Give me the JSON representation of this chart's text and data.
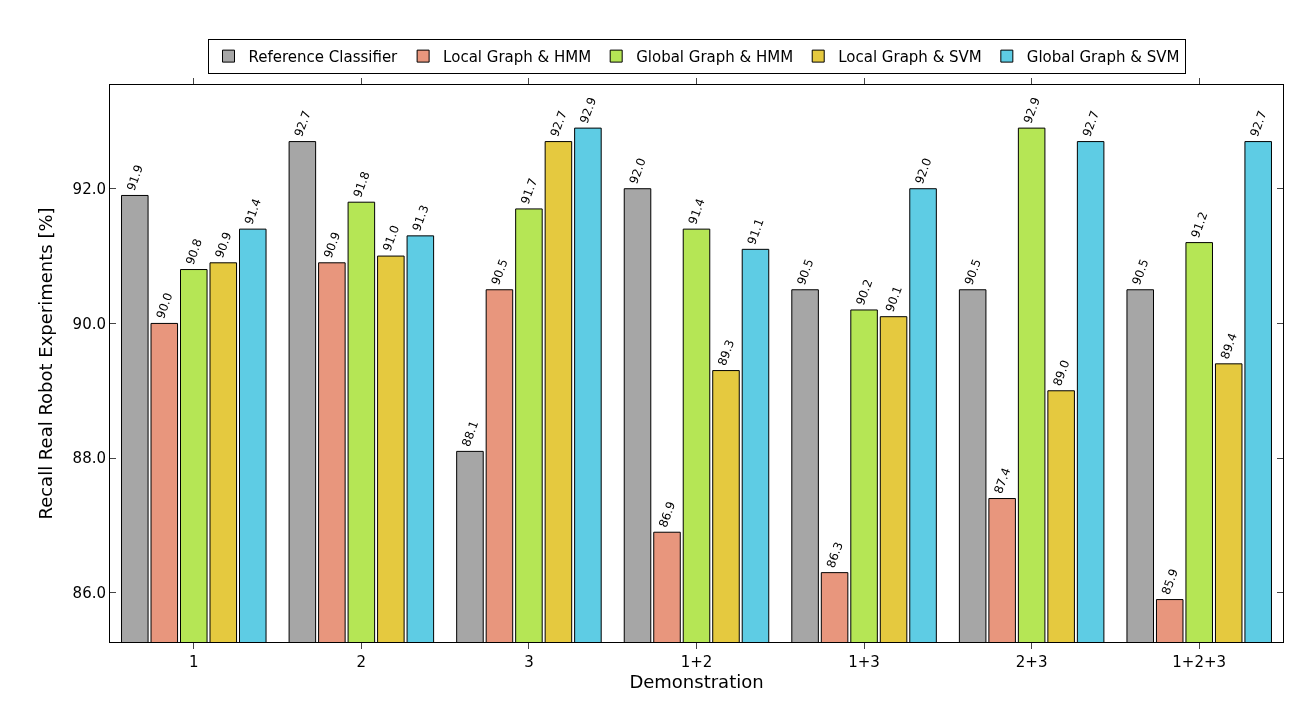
{
  "chart_data": {
    "type": "bar",
    "xlabel": "Demonstration",
    "ylabel": "Recall Real Robot Experiments [%]",
    "categories": [
      "1",
      "2",
      "3",
      "1+2",
      "1+3",
      "2+3",
      "1+2+3"
    ],
    "series": [
      {
        "name": "Reference Classifier",
        "color": "#a6a6a6",
        "values": [
          91.9,
          92.7,
          88.1,
          92.0,
          90.5,
          90.5,
          90.5
        ],
        "value_labels": [
          "91.9",
          "92.7",
          "88.1",
          "92.0",
          "90.5",
          "90.5",
          "90.5"
        ]
      },
      {
        "name": "Local Graph & HMM",
        "color": "#e8967d",
        "values": [
          90.0,
          90.9,
          90.5,
          86.9,
          86.3,
          87.4,
          85.9
        ],
        "value_labels": [
          "90.0",
          "90.9",
          "90.5",
          "86.9",
          "86.3",
          "87.4",
          "85.9"
        ]
      },
      {
        "name": "Global Graph & HMM",
        "color": "#b5e655",
        "values": [
          90.8,
          91.8,
          91.7,
          91.4,
          90.2,
          92.9,
          91.2
        ],
        "value_labels": [
          "90.8",
          "91.8",
          "91.7",
          "91.4",
          "90.2",
          "92.9",
          "91.2"
        ]
      },
      {
        "name": "Local Graph & SVM",
        "color": "#e5c93f",
        "values": [
          90.9,
          91.0,
          92.7,
          89.3,
          90.1,
          89.0,
          89.4
        ],
        "value_labels": [
          "90.9",
          "91.0",
          "92.7",
          "89.3",
          "90.1",
          "89.0",
          "89.4"
        ]
      },
      {
        "name": "Global Graph & SVM",
        "color": "#5ecce4",
        "values": [
          91.4,
          91.3,
          92.9,
          91.1,
          92.0,
          92.7,
          92.7
        ],
        "value_labels": [
          "91.4",
          "91.3",
          "92.9",
          "91.1",
          "92.0",
          "92.7",
          "92.7"
        ]
      }
    ],
    "ylim": [
      85.27,
      93.54
    ],
    "yticks": [
      {
        "value": 86,
        "label": "86.0"
      },
      {
        "value": 88,
        "label": "88.0"
      },
      {
        "value": 90,
        "label": "90.0"
      },
      {
        "value": 92,
        "label": "92.0"
      }
    ],
    "legend": "top"
  }
}
